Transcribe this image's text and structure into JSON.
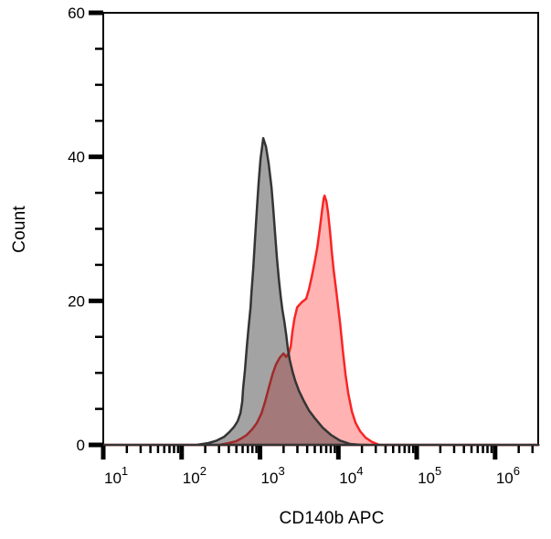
{
  "figure": {
    "kind": "flow-cytometry-histogram-overlay"
  },
  "colors": {
    "background": "#ffffff",
    "frame": "#000000",
    "text": "#000000",
    "red_stroke": "#f92525",
    "red_fill": "#ff2525",
    "gray_stroke": "#343434",
    "gray_fill": "#323232"
  },
  "chart_data": {
    "type": "area",
    "title": "",
    "xlabel": "CD140b APC",
    "ylabel": "Count",
    "grid": false,
    "legend": "none",
    "x_axis": {
      "scale": "log",
      "base_label": "10",
      "major_exponents": [
        1,
        2,
        3,
        4,
        5,
        6
      ],
      "minor_mantissas": [
        2,
        3,
        4,
        5,
        6,
        7,
        8,
        9
      ],
      "domain_log10": [
        1.0,
        6.55
      ]
    },
    "y_axis": {
      "min": 0,
      "max": 60,
      "major_ticks": [
        0,
        20,
        40,
        60
      ],
      "minor_step": 5
    },
    "z_order": "red drawn first, gray semi-transparent drawn on top",
    "series": [
      {
        "id": "red-histogram",
        "label": "red filled histogram",
        "stroke": "#f92525",
        "fill": "#ff2525",
        "fill_opacity": 0.35,
        "peak_x_approx": 6500,
        "peak_count": 34.6,
        "secondary_peak_x_approx": 2000,
        "secondary_peak_count": 12.8,
        "points_log10x_count": [
          [
            1.0,
            0.0
          ],
          [
            2.482,
            0.0
          ],
          [
            2.599,
            0.25
          ],
          [
            2.692,
            0.5
          ],
          [
            2.762,
            0.9
          ],
          [
            2.832,
            1.4
          ],
          [
            2.902,
            2.2
          ],
          [
            2.96,
            3.05
          ],
          [
            3.019,
            4.4
          ],
          [
            3.065,
            6.0
          ],
          [
            3.112,
            7.9
          ],
          [
            3.159,
            9.8
          ],
          [
            3.205,
            11.2
          ],
          [
            3.252,
            12.1
          ],
          [
            3.299,
            12.7
          ],
          [
            3.334,
            12.2
          ],
          [
            3.369,
            12.8
          ],
          [
            3.392,
            13.7
          ],
          [
            3.415,
            15.8
          ],
          [
            3.439,
            17.5
          ],
          [
            3.474,
            19.1
          ],
          [
            3.532,
            19.8
          ],
          [
            3.59,
            20.3
          ],
          [
            3.625,
            21.6
          ],
          [
            3.66,
            23.3
          ],
          [
            3.695,
            25.2
          ],
          [
            3.73,
            27.3
          ],
          [
            3.765,
            30.1
          ],
          [
            3.789,
            32.3
          ],
          [
            3.812,
            34.2
          ],
          [
            3.824,
            34.6
          ],
          [
            3.847,
            33.8
          ],
          [
            3.87,
            32.2
          ],
          [
            3.894,
            29.6
          ],
          [
            3.917,
            26.7
          ],
          [
            3.94,
            24.2
          ],
          [
            3.964,
            22.2
          ],
          [
            3.987,
            20.1
          ],
          [
            4.022,
            16.9
          ],
          [
            4.057,
            13.1
          ],
          [
            4.092,
            9.7
          ],
          [
            4.127,
            7.1
          ],
          [
            4.174,
            4.6
          ],
          [
            4.22,
            3.05
          ],
          [
            4.278,
            1.9
          ],
          [
            4.348,
            1.0
          ],
          [
            4.43,
            0.4
          ],
          [
            4.523,
            0.0
          ],
          [
            6.553,
            0.0
          ]
        ]
      },
      {
        "id": "gray-histogram",
        "label": "gray filled histogram",
        "stroke": "#343434",
        "fill": "#323232",
        "fill_opacity": 0.45,
        "peak_x_approx": 1100,
        "peak_count": 42.6,
        "points_log10x_count": [
          [
            1.0,
            0.0
          ],
          [
            2.19,
            0.0
          ],
          [
            2.342,
            0.25
          ],
          [
            2.447,
            0.6
          ],
          [
            2.54,
            1.1
          ],
          [
            2.61,
            1.8
          ],
          [
            2.669,
            2.5
          ],
          [
            2.715,
            3.3
          ],
          [
            2.75,
            4.4
          ],
          [
            2.773,
            6.0
          ],
          [
            2.785,
            7.9
          ],
          [
            2.808,
            10.4
          ],
          [
            2.832,
            13.6
          ],
          [
            2.855,
            16.4
          ],
          [
            2.879,
            19.1
          ],
          [
            2.89,
            21.0
          ],
          [
            2.913,
            24.4
          ],
          [
            2.937,
            28.6
          ],
          [
            2.96,
            32.7
          ],
          [
            2.983,
            36.5
          ],
          [
            3.007,
            39.7
          ],
          [
            3.042,
            42.6
          ],
          [
            3.077,
            41.4
          ],
          [
            3.112,
            39.0
          ],
          [
            3.147,
            35.8
          ],
          [
            3.17,
            32.7
          ],
          [
            3.194,
            29.1
          ],
          [
            3.217,
            25.9
          ],
          [
            3.24,
            23.1
          ],
          [
            3.264,
            20.6
          ],
          [
            3.287,
            18.7
          ],
          [
            3.31,
            17.2
          ],
          [
            3.334,
            15.3
          ],
          [
            3.357,
            13.3
          ],
          [
            3.38,
            11.8
          ],
          [
            3.415,
            10.2
          ],
          [
            3.45,
            8.9
          ],
          [
            3.497,
            7.5
          ],
          [
            3.555,
            6.2
          ],
          [
            3.625,
            4.8
          ],
          [
            3.707,
            3.6
          ],
          [
            3.8,
            2.4
          ],
          [
            3.905,
            1.4
          ],
          [
            4.022,
            0.6
          ],
          [
            4.15,
            0.13
          ],
          [
            4.29,
            0.0
          ],
          [
            6.553,
            0.0
          ]
        ]
      }
    ]
  }
}
